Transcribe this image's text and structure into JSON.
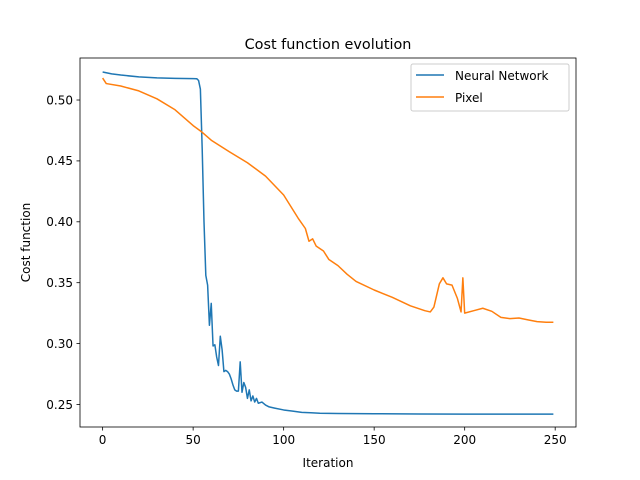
{
  "chart_data": {
    "type": "line",
    "title": "Cost function evolution",
    "xlabel": "Iteration",
    "ylabel": "Cost function",
    "xlim": [
      -12.5,
      261.5
    ],
    "ylim": [
      0.2315,
      0.5345
    ],
    "xticks": [
      0,
      50,
      100,
      150,
      200,
      250
    ],
    "yticks": [
      0.25,
      0.3,
      0.35,
      0.4,
      0.45,
      0.5
    ],
    "xtick_labels": [
      "0",
      "50",
      "100",
      "150",
      "200",
      "250"
    ],
    "ytick_labels": [
      "0.25",
      "0.30",
      "0.35",
      "0.40",
      "0.45",
      "0.50"
    ],
    "grid": false,
    "legend_position": "upper right",
    "series": [
      {
        "name": "Neural Network",
        "color": "#1f77b4",
        "points": [
          [
            0,
            0.523
          ],
          [
            5,
            0.5215
          ],
          [
            10,
            0.5205
          ],
          [
            20,
            0.519
          ],
          [
            30,
            0.5182
          ],
          [
            40,
            0.5178
          ],
          [
            50,
            0.5176
          ],
          [
            52,
            0.5175
          ],
          [
            53,
            0.516
          ],
          [
            54,
            0.509
          ],
          [
            55,
            0.46
          ],
          [
            56,
            0.4
          ],
          [
            57,
            0.356
          ],
          [
            58,
            0.348
          ],
          [
            59,
            0.315
          ],
          [
            60,
            0.333
          ],
          [
            61,
            0.298
          ],
          [
            62,
            0.299
          ],
          [
            63,
            0.289
          ],
          [
            64,
            0.282
          ],
          [
            65,
            0.306
          ],
          [
            66,
            0.295
          ],
          [
            67,
            0.277
          ],
          [
            68,
            0.278
          ],
          [
            69,
            0.277
          ],
          [
            70,
            0.275
          ],
          [
            71,
            0.271
          ],
          [
            72,
            0.266
          ],
          [
            73,
            0.262
          ],
          [
            74,
            0.261
          ],
          [
            75,
            0.261
          ],
          [
            76,
            0.285
          ],
          [
            77,
            0.26
          ],
          [
            78,
            0.268
          ],
          [
            79,
            0.264
          ],
          [
            80,
            0.255
          ],
          [
            81,
            0.262
          ],
          [
            82,
            0.253
          ],
          [
            83,
            0.257
          ],
          [
            84,
            0.252
          ],
          [
            85,
            0.255
          ],
          [
            86,
            0.251
          ],
          [
            88,
            0.252
          ],
          [
            90,
            0.2495
          ],
          [
            92,
            0.248
          ],
          [
            95,
            0.247
          ],
          [
            100,
            0.2455
          ],
          [
            105,
            0.2445
          ],
          [
            110,
            0.2435
          ],
          [
            115,
            0.2432
          ],
          [
            120,
            0.2428
          ],
          [
            130,
            0.2426
          ],
          [
            150,
            0.2424
          ],
          [
            175,
            0.2422
          ],
          [
            200,
            0.2421
          ],
          [
            225,
            0.2421
          ],
          [
            249,
            0.2421
          ]
        ]
      },
      {
        "name": "Pixel",
        "color": "#ff7f0e",
        "points": [
          [
            0,
            0.518
          ],
          [
            2,
            0.5135
          ],
          [
            10,
            0.5115
          ],
          [
            20,
            0.5075
          ],
          [
            30,
            0.501
          ],
          [
            40,
            0.492
          ],
          [
            50,
            0.479
          ],
          [
            55,
            0.4735
          ],
          [
            60,
            0.467
          ],
          [
            70,
            0.4575
          ],
          [
            80,
            0.4485
          ],
          [
            90,
            0.4375
          ],
          [
            100,
            0.422
          ],
          [
            108,
            0.403
          ],
          [
            112,
            0.3945
          ],
          [
            114,
            0.384
          ],
          [
            116,
            0.386
          ],
          [
            118,
            0.38
          ],
          [
            122,
            0.376
          ],
          [
            125,
            0.369
          ],
          [
            130,
            0.364
          ],
          [
            135,
            0.357
          ],
          [
            140,
            0.351
          ],
          [
            150,
            0.344
          ],
          [
            160,
            0.338
          ],
          [
            170,
            0.331
          ],
          [
            178,
            0.327
          ],
          [
            181,
            0.326
          ],
          [
            183,
            0.33
          ],
          [
            186,
            0.349
          ],
          [
            188,
            0.354
          ],
          [
            190,
            0.349
          ],
          [
            193,
            0.348
          ],
          [
            196,
            0.337
          ],
          [
            198,
            0.326
          ],
          [
            199,
            0.354
          ],
          [
            200,
            0.325
          ],
          [
            205,
            0.327
          ],
          [
            210,
            0.329
          ],
          [
            215,
            0.3265
          ],
          [
            220,
            0.3215
          ],
          [
            225,
            0.3205
          ],
          [
            230,
            0.321
          ],
          [
            235,
            0.3195
          ],
          [
            240,
            0.318
          ],
          [
            245,
            0.3175
          ],
          [
            249,
            0.3175
          ]
        ]
      }
    ]
  }
}
